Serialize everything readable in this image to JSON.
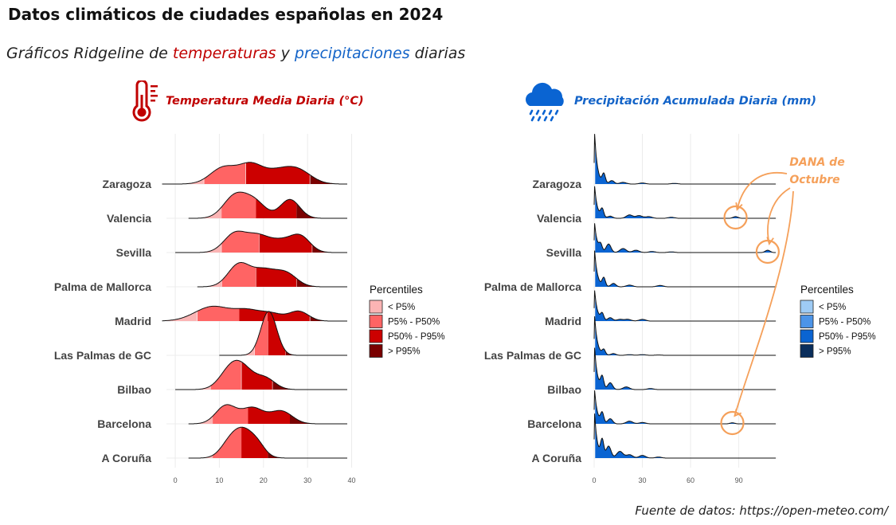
{
  "header": {
    "title": "Datos climáticos de ciudades españolas en 2024",
    "subtitle_parts": [
      "Gráficos Ridgeline de ",
      "temperaturas",
      " y ",
      "precipitaciones",
      " diarias"
    ]
  },
  "source": "Fuente de datos: https://open-meteo.com/",
  "colors": {
    "temp": [
      "#fbb4b4",
      "#ff6464",
      "#cc0000",
      "#7a0000"
    ],
    "prec": [
      "#9ecbf5",
      "#4c94e8",
      "#0a64d2",
      "#0a2e5c"
    ],
    "temp_title": "#c00000",
    "prec_title": "#1464c8",
    "annotation": "#f5a05a"
  },
  "chart_data": [
    {
      "type": "ridgeline",
      "title": "Temperatura Media Diaria (°C)",
      "icon": "thermometer-icon",
      "categories": [
        "Zaragoza",
        "Valencia",
        "Sevilla",
        "Palma de Mallorca",
        "Madrid",
        "Las Palmas de GC",
        "Bilbao",
        "Barcelona",
        "A Coruña"
      ],
      "xlim": [
        -2,
        39
      ],
      "xticks": [
        0,
        10,
        20,
        30,
        40
      ],
      "legend": {
        "title": "Percentiles",
        "entries": [
          "< P5%",
          "P5% - P50%",
          "P50% - P95%",
          "> P95%"
        ],
        "position": "right"
      },
      "series": [
        {
          "name": "Zaragoza",
          "range": [
            -3,
            39
          ],
          "p5": 6.5,
          "p50": 16,
          "p95": 30.5,
          "peaks": [
            [
              11,
              3.0,
              0.55
            ],
            [
              17,
              2.6,
              0.55
            ],
            [
              23,
              3.5,
              0.4
            ],
            [
              28,
              3.0,
              0.38
            ]
          ]
        },
        {
          "name": "Valencia",
          "range": [
            3,
            39
          ],
          "p5": 10.5,
          "p50": 18.3,
          "p95": 27.5,
          "peaks": [
            [
              13.5,
              2.6,
              0.72
            ],
            [
              18,
              2.5,
              0.52
            ],
            [
              26,
              2.2,
              0.62
            ]
          ]
        },
        {
          "name": "Sevilla",
          "range": [
            0,
            39
          ],
          "p5": 10.5,
          "p50": 19,
          "p95": 31,
          "peaks": [
            [
              13.5,
              2.5,
              0.62
            ],
            [
              18.5,
              2.5,
              0.48
            ],
            [
              24,
              3.0,
              0.38
            ],
            [
              28.5,
              2.2,
              0.46
            ]
          ]
        },
        {
          "name": "Palma de Mallorca",
          "range": [
            5,
            39
          ],
          "p5": 10.5,
          "p50": 18.3,
          "p95": 27.5,
          "peaks": [
            [
              14.5,
              2.5,
              0.75
            ],
            [
              20,
              2.5,
              0.5
            ],
            [
              25,
              2.5,
              0.45
            ]
          ]
        },
        {
          "name": "Madrid",
          "range": [
            -3,
            39
          ],
          "p5": 5,
          "p50": 14.5,
          "p95": 30.5,
          "peaks": [
            [
              8.5,
              4.0,
              0.48
            ],
            [
              16.5,
              3.0,
              0.32
            ],
            [
              22,
              2.5,
              0.22
            ],
            [
              28,
              2.2,
              0.32
            ]
          ]
        },
        {
          "name": "Las Palmas de GC",
          "range": [
            10,
            39
          ],
          "p5": 18,
          "p50": 21,
          "p95": 25,
          "peaks": [
            [
              21.2,
              1.8,
              1.45
            ]
          ]
        },
        {
          "name": "Bilbao",
          "range": [
            0,
            39
          ],
          "p5": 8,
          "p50": 15,
          "p95": 22,
          "peaks": [
            [
              12.5,
              2.5,
              0.6
            ],
            [
              15.5,
              2.5,
              0.55
            ],
            [
              20.5,
              2.2,
              0.35
            ]
          ]
        },
        {
          "name": "Barcelona",
          "range": [
            3,
            39
          ],
          "p5": 8.5,
          "p50": 16.5,
          "p95": 26,
          "peaks": [
            [
              11.5,
              2.3,
              0.6
            ],
            [
              17.5,
              2.5,
              0.52
            ],
            [
              24,
              2.5,
              0.42
            ]
          ]
        },
        {
          "name": "A Coruña",
          "range": [
            3,
            39
          ],
          "p5": 8.5,
          "p50": 15,
          "p95": 21,
          "peaks": [
            [
              15.5,
              2.8,
              0.95
            ],
            [
              12,
              2.0,
              0.25
            ],
            [
              19,
              1.5,
              0.15
            ]
          ]
        }
      ]
    },
    {
      "type": "ridgeline",
      "title": "Precipitación Acumulada Diaria (mm)",
      "icon": "rain-cloud-icon",
      "categories": [
        "Zaragoza",
        "Valencia",
        "Sevilla",
        "Palma de Mallorca",
        "Madrid",
        "Las Palmas de GC",
        "Bilbao",
        "Barcelona",
        "A Coruña"
      ],
      "xlim": [
        0,
        114
      ],
      "xticks": [
        0,
        30,
        60,
        90
      ],
      "legend": {
        "title": "Percentiles",
        "entries": [
          "< P5%",
          "P5% - P50%",
          "P50% - P95%",
          "> P95%"
        ],
        "position": "right"
      },
      "series": [
        {
          "name": "Zaragoza",
          "range": [
            0,
            113
          ],
          "p5": 0.2,
          "p50": 0.5,
          "p95": 113,
          "peak_height": 1.8,
          "bumps": [
            [
              6,
              1.0,
              0.28
            ],
            [
              11,
              1.5,
              0.1
            ],
            [
              18,
              2,
              0.05
            ],
            [
              30,
              2,
              0.03
            ],
            [
              50,
              2,
              0.02
            ]
          ]
        },
        {
          "name": "Valencia",
          "range": [
            0,
            113
          ],
          "p5": 0.2,
          "p50": 0.5,
          "p95": 113,
          "peak_height": 1.15,
          "bumps": [
            [
              5,
              1.0,
              0.25
            ],
            [
              10,
              1.5,
              0.06
            ],
            [
              22,
              2,
              0.1
            ],
            [
              28,
              2,
              0.08
            ],
            [
              34,
              2,
              0.05
            ],
            [
              48,
              2,
              0.03
            ],
            [
              88,
              1.5,
              0.05
            ]
          ]
        },
        {
          "name": "Sevilla",
          "range": [
            0,
            113
          ],
          "p5": 0.2,
          "p50": 0.5,
          "p95": 113,
          "peak_height": 1.05,
          "bumps": [
            [
              4,
              1.0,
              0.2
            ],
            [
              9,
              1.5,
              0.25
            ],
            [
              18,
              2,
              0.12
            ],
            [
              26,
              2,
              0.07
            ],
            [
              36,
              2,
              0.03
            ],
            [
              48,
              2,
              0.02
            ],
            [
              108,
              1.5,
              0.07
            ]
          ]
        },
        {
          "name": "Palma de Mallorca",
          "range": [
            0,
            113
          ],
          "p5": 0.2,
          "p50": 0.5,
          "p95": 113,
          "peak_height": 1.3,
          "bumps": [
            [
              6,
              1.0,
              0.25
            ],
            [
              12,
              1.5,
              0.1
            ],
            [
              22,
              2,
              0.05
            ],
            [
              41,
              2,
              0.04
            ]
          ]
        },
        {
          "name": "Madrid",
          "range": [
            0,
            113
          ],
          "p5": 0.2,
          "p50": 0.5,
          "p95": 113,
          "peak_height": 1.1,
          "bumps": [
            [
              5,
              1.0,
              0.2
            ],
            [
              10,
              1.5,
              0.1
            ],
            [
              16,
              2,
              0.05
            ],
            [
              21,
              2,
              0.05
            ],
            [
              30,
              2,
              0.05
            ]
          ]
        },
        {
          "name": "Las Palmas de GC",
          "range": [
            0,
            113
          ],
          "p5": 0.2,
          "p50": 0.5,
          "p95": 113,
          "peak_height": 1.4,
          "bumps": [
            [
              6,
              1.0,
              0.15
            ],
            [
              12,
              1.5,
              0.05
            ],
            [
              22,
              2,
              0.02
            ],
            [
              30,
              2,
              0.02
            ],
            [
              40,
              2,
              0.01
            ]
          ]
        },
        {
          "name": "Bilbao",
          "range": [
            0,
            113
          ],
          "p5": 0.2,
          "p50": 0.5,
          "p95": 113,
          "peak_height": 1.5,
          "bumps": [
            [
              5,
              1.0,
              0.35
            ],
            [
              10,
              1.5,
              0.2
            ],
            [
              20,
              2,
              0.08
            ],
            [
              35,
              2,
              0.03
            ]
          ]
        },
        {
          "name": "Barcelona",
          "range": [
            0,
            113
          ],
          "p5": 0.2,
          "p50": 0.5,
          "p95": 113,
          "peak_height": 1.2,
          "bumps": [
            [
              5,
              1.0,
              0.3
            ],
            [
              10,
              1.5,
              0.15
            ],
            [
              22,
              2,
              0.08
            ],
            [
              30,
              2,
              0.04
            ],
            [
              86,
              1.5,
              0.03
            ]
          ]
        },
        {
          "name": "A Coruña",
          "range": [
            0,
            113
          ],
          "p5": 0.2,
          "p50": 0.5,
          "p95": 113,
          "peak_height": 1.6,
          "bumps": [
            [
              5,
              1.0,
              0.5
            ],
            [
              9,
              1.5,
              0.35
            ],
            [
              16,
              2,
              0.2
            ],
            [
              22,
              2,
              0.1
            ],
            [
              30,
              2,
              0.08
            ],
            [
              40,
              2,
              0.03
            ]
          ]
        }
      ],
      "annotation": {
        "text_lines": [
          "DANA de",
          "Octubre"
        ],
        "highlights": [
          "Valencia",
          "Sevilla",
          "Barcelona"
        ]
      }
    }
  ]
}
